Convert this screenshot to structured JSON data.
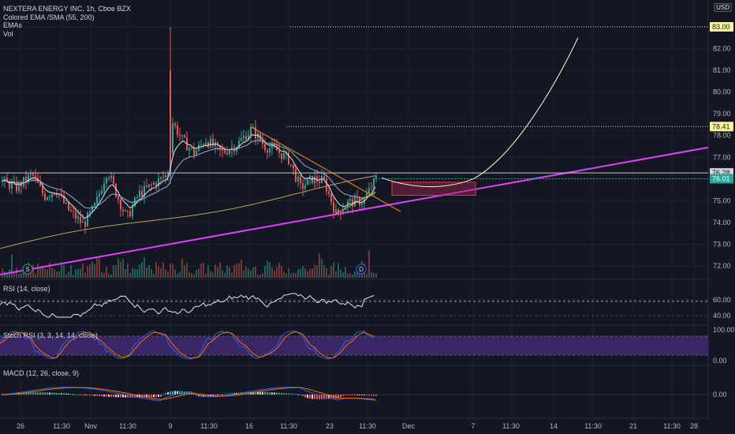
{
  "legend": {
    "symbol": "NEXTERA ENERGY INC, 1h, Cboe BZX",
    "line2": "Colored EMA /SMA (55, 200)",
    "line3": "EMAs",
    "line4": "Vol"
  },
  "currency": "USD",
  "price_axis": [
    "83.00",
    "82.00",
    "81.00",
    "80.00",
    "79.00",
    "78.00",
    "77.00",
    "76.00",
    "75.00",
    "74.00",
    "73.00",
    "72.00"
  ],
  "price_tags": [
    {
      "value": "83.00",
      "bg": "#fff59d",
      "fg": "#131722"
    },
    {
      "value": "78.41",
      "bg": "#fff59d",
      "fg": "#131722"
    },
    {
      "value": "76.28",
      "bg": "#d1d4dc",
      "fg": "#131722"
    },
    {
      "value": "76.01",
      "bg": "#26a69a",
      "fg": "#ffffff"
    }
  ],
  "rsi": {
    "title": "RSI (14, close)",
    "levels": [
      "60.00",
      "40.00"
    ]
  },
  "stoch": {
    "title": "Stoch RSI (3, 3, 14, 14, close)",
    "levels": [
      "100.00",
      "0.00"
    ]
  },
  "macd": {
    "title": "MACD (12, 26, close, 9)",
    "levels": [
      "0.00"
    ]
  },
  "time_axis": [
    "26",
    "11:30",
    "Nov",
    "11:30",
    "9",
    "11:30",
    "16",
    "11:30",
    "23",
    "11:30",
    "Dec",
    "7",
    "11:30",
    "14",
    "11:30",
    "21",
    "11:30",
    "28"
  ],
  "markers": {
    "s": "S",
    "d": "D"
  },
  "colors": {
    "up": "#26a69a",
    "down": "#ef5350",
    "trend": "#e040fb",
    "curve": "#fff9c4",
    "wedge": "#f7931a",
    "sma": "#b8a25a"
  }
}
